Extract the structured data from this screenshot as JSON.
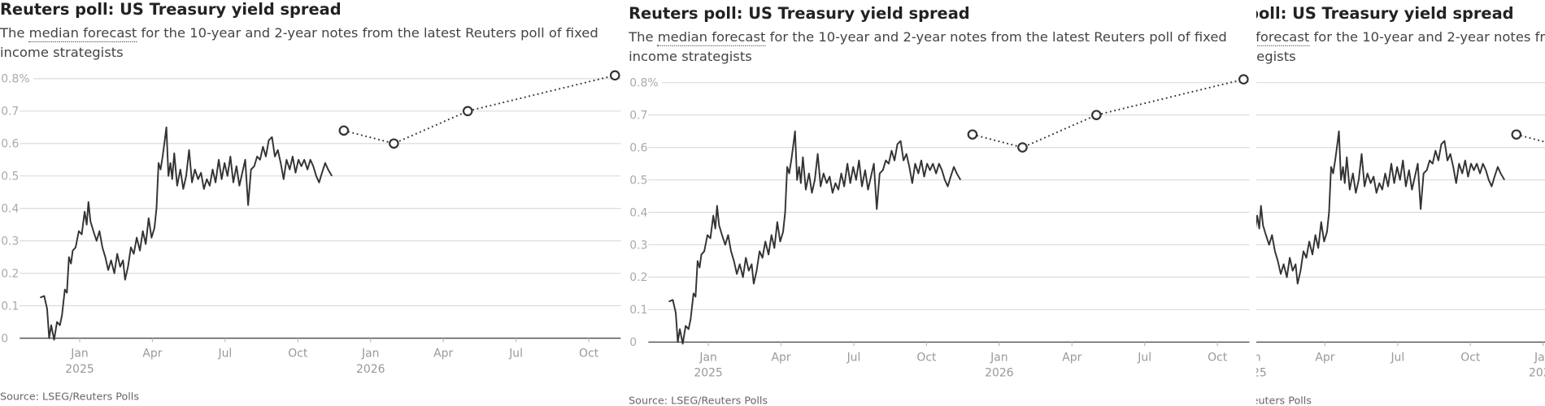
{
  "chart_data": {
    "type": "line",
    "title": "Reuters poll: US Treasury yield spread",
    "subtitle": [
      "The",
      "median forecast",
      "for the 10-year and 2-year notes from the latest Reuters poll of fixed income strategists"
    ],
    "source": "Source: LSEG/Reuters Polls",
    "xlim": [
      2024.726,
      2026.86
    ],
    "xticks": [
      {
        "value": 2025.0,
        "label": "Jan 2025"
      },
      {
        "value": 2025.25,
        "label": "Apr"
      },
      {
        "value": 2025.5,
        "label": "Jul"
      },
      {
        "value": 2025.75,
        "label": "Oct"
      },
      {
        "value": 2026.0,
        "label": "Jan 2026"
      },
      {
        "value": 2026.25,
        "label": "Apr"
      },
      {
        "value": 2026.5,
        "label": "Jul"
      },
      {
        "value": 2026.75,
        "label": "Oct"
      }
    ],
    "ylim": [
      0,
      0.8
    ],
    "yticks": [
      0,
      0.1,
      0.2,
      0.3,
      0.4,
      0.5,
      0.6,
      0.7,
      {
        "value": 0.8,
        "label": "0.8%"
      }
    ],
    "grid": true,
    "series": [
      {
        "color": "#333333",
        "style": "solid",
        "x": [
          2024.864,
          2024.878,
          2024.888,
          2024.895,
          2024.902,
          2024.912,
          2024.922,
          2024.932,
          2024.939,
          2024.949,
          2024.956,
          2024.963,
          2024.97,
          2024.976,
          2024.986,
          2024.997,
          2025.007,
          2025.017,
          2025.024,
          2025.03,
          2025.037,
          2025.047,
          2025.058,
          2025.068,
          2025.078,
          2025.088,
          2025.098,
          2025.108,
          2025.119,
          2025.129,
          2025.139,
          2025.149,
          2025.156,
          2025.166,
          2025.176,
          2025.186,
          2025.196,
          2025.207,
          2025.217,
          2025.227,
          2025.237,
          2025.247,
          2025.257,
          2025.264,
          2025.271,
          2025.278,
          2025.285,
          2025.291,
          2025.298,
          2025.305,
          2025.312,
          2025.318,
          2025.325,
          2025.335,
          2025.346,
          2025.356,
          2025.366,
          2025.376,
          2025.386,
          2025.396,
          2025.407,
          2025.417,
          2025.427,
          2025.437,
          2025.447,
          2025.457,
          2025.467,
          2025.478,
          2025.488,
          2025.498,
          2025.508,
          2025.518,
          2025.528,
          2025.539,
          2025.549,
          2025.559,
          2025.569,
          2025.579,
          2025.589,
          2025.6,
          2025.61,
          2025.62,
          2025.63,
          2025.64,
          2025.65,
          2025.661,
          2025.671,
          2025.681,
          2025.691,
          2025.701,
          2025.711,
          2025.722,
          2025.732,
          2025.742,
          2025.752,
          2025.762,
          2025.772,
          2025.783,
          2025.793,
          2025.803,
          2025.813,
          2025.823,
          2025.833,
          2025.844,
          2025.854,
          2025.867
        ],
        "values": [
          0.125,
          0.13,
          0.09,
          0.0,
          0.04,
          -0.005,
          0.05,
          0.04,
          0.07,
          0.15,
          0.14,
          0.25,
          0.23,
          0.27,
          0.28,
          0.33,
          0.32,
          0.39,
          0.35,
          0.42,
          0.36,
          0.33,
          0.3,
          0.33,
          0.28,
          0.25,
          0.21,
          0.24,
          0.2,
          0.26,
          0.22,
          0.24,
          0.18,
          0.22,
          0.28,
          0.26,
          0.31,
          0.27,
          0.33,
          0.29,
          0.37,
          0.31,
          0.34,
          0.4,
          0.54,
          0.52,
          0.56,
          0.6,
          0.65,
          0.5,
          0.54,
          0.49,
          0.57,
          0.47,
          0.52,
          0.46,
          0.5,
          0.58,
          0.48,
          0.52,
          0.49,
          0.51,
          0.46,
          0.49,
          0.47,
          0.52,
          0.48,
          0.55,
          0.49,
          0.54,
          0.5,
          0.56,
          0.48,
          0.53,
          0.47,
          0.51,
          0.55,
          0.41,
          0.52,
          0.53,
          0.56,
          0.55,
          0.59,
          0.56,
          0.61,
          0.62,
          0.56,
          0.58,
          0.54,
          0.49,
          0.55,
          0.52,
          0.56,
          0.51,
          0.55,
          0.53,
          0.55,
          0.52,
          0.55,
          0.53,
          0.5,
          0.48,
          0.51,
          0.54,
          0.52,
          0.5
        ]
      },
      {
        "color": "#333333",
        "style": "dotted",
        "markers": true,
        "x": [
          2025.908,
          2026.08,
          2026.334,
          2026.84
        ],
        "values": [
          0.64,
          0.6,
          0.7,
          0.81
        ]
      }
    ]
  }
}
